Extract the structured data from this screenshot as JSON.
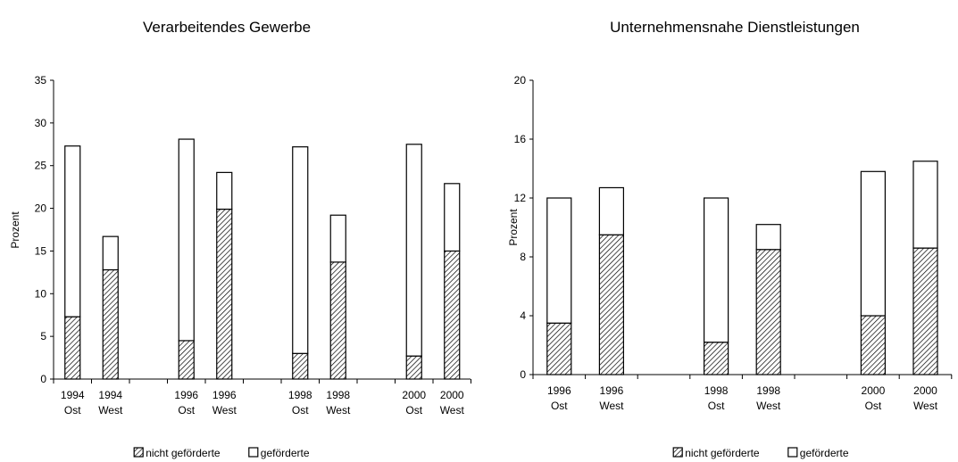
{
  "chart_data": [
    {
      "type": "bar",
      "stacked": true,
      "title": "Verarbeitendes Gewerbe",
      "ylabel": "Prozent",
      "ylim": [
        0,
        35
      ],
      "yticks": [
        0,
        5,
        10,
        15,
        20,
        25,
        30,
        35
      ],
      "categories": [
        [
          "1994",
          "Ost"
        ],
        [
          "1994",
          "West"
        ],
        null,
        [
          "1996",
          "Ost"
        ],
        [
          "1996",
          "West"
        ],
        null,
        [
          "1998",
          "Ost"
        ],
        [
          "1998",
          "West"
        ],
        null,
        [
          "2000",
          "Ost"
        ],
        [
          "2000",
          "West"
        ]
      ],
      "series": [
        {
          "name": "nicht geförderte",
          "pattern": "hatched",
          "values": [
            7.3,
            12.8,
            null,
            4.5,
            19.9,
            null,
            3.0,
            13.7,
            null,
            2.7,
            15.0
          ]
        },
        {
          "name": "geförderte",
          "pattern": "white",
          "values": [
            20.0,
            3.9,
            null,
            23.6,
            4.3,
            null,
            24.2,
            5.5,
            null,
            24.8,
            7.9
          ]
        }
      ],
      "legend": "bottom"
    },
    {
      "type": "bar",
      "stacked": true,
      "title": "Unternehmensnahe Dienstleistungen",
      "ylabel": "Prozent",
      "ylim": [
        0,
        20
      ],
      "yticks": [
        0,
        4,
        8,
        12,
        16,
        20
      ],
      "categories": [
        [
          "1996",
          "Ost"
        ],
        [
          "1996",
          "West"
        ],
        null,
        [
          "1998",
          "Ost"
        ],
        [
          "1998",
          "West"
        ],
        null,
        [
          "2000",
          "Ost"
        ],
        [
          "2000",
          "West"
        ]
      ],
      "series": [
        {
          "name": "nicht geförderte",
          "pattern": "hatched",
          "values": [
            3.5,
            9.5,
            null,
            2.2,
            8.5,
            null,
            4.0,
            8.6
          ]
        },
        {
          "name": "geförderte",
          "pattern": "white",
          "values": [
            8.5,
            3.2,
            null,
            9.8,
            1.7,
            null,
            9.8,
            5.9
          ]
        }
      ],
      "legend": "bottom"
    }
  ]
}
